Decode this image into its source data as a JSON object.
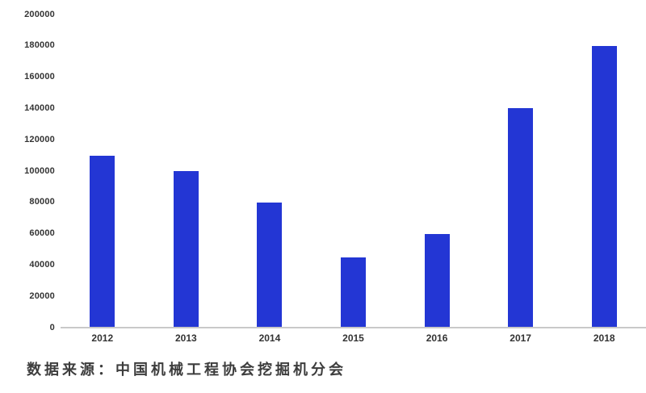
{
  "chart_data": {
    "type": "bar",
    "title": "",
    "xlabel": "",
    "ylabel": "",
    "categories": [
      "2012",
      "2013",
      "2014",
      "2015",
      "2016",
      "2017",
      "2018"
    ],
    "values": [
      110000,
      100000,
      80000,
      45000,
      60000,
      140000,
      180000
    ],
    "ylim": [
      0,
      200000
    ],
    "ytick_step": 20000,
    "yticks": [
      "0",
      "20000",
      "40000",
      "60000",
      "80000",
      "100000",
      "120000",
      "140000",
      "160000",
      "180000",
      "200000"
    ],
    "grid": false,
    "legend": false,
    "bar_color": "#2336d4"
  },
  "source_note": "数据来源：中国机械工程协会挖掘机分会",
  "colors": {
    "bar": "#2336d4",
    "baseline": "#c9c9c9",
    "tick_text": "#333333",
    "source_text": "#3d3d3d",
    "background": "#ffffff"
  }
}
